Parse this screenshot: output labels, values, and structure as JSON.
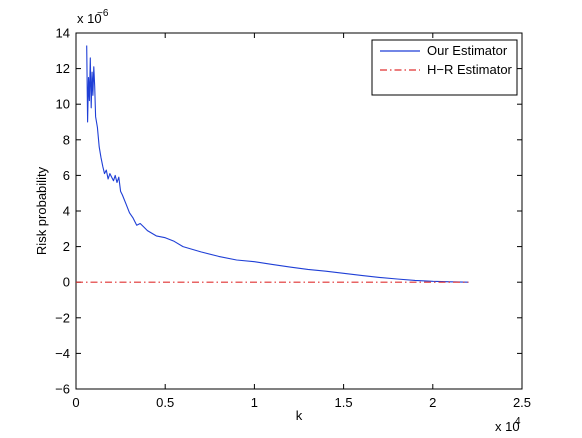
{
  "chart_data": {
    "type": "line",
    "xlabel": "k",
    "ylabel": "Risk probability",
    "xlim": [
      0,
      2.5
    ],
    "ylim": [
      -6,
      14
    ],
    "x_ticks": [
      0,
      0.5,
      1,
      1.5,
      2,
      2.5
    ],
    "y_ticks": [
      -6,
      -4,
      -2,
      0,
      2,
      4,
      6,
      8,
      10,
      12,
      14
    ],
    "x_tick_labels": [
      "0",
      "0.5",
      "1",
      "1.5",
      "2",
      "2.5"
    ],
    "y_tick_labels": [
      "−6",
      "−4",
      "−2",
      "0",
      "2",
      "4",
      "6",
      "8",
      "10",
      "12",
      "14"
    ],
    "x_exponent": "x 10",
    "x_exponent_power": "4",
    "y_exponent": "x 10",
    "y_exponent_power": "−6",
    "grid": false,
    "legend_position": "top-right",
    "series": [
      {
        "name": "Our Estimator",
        "color": "#1f3fd6",
        "style": "solid",
        "x": [
          0.06,
          0.065,
          0.07,
          0.075,
          0.08,
          0.085,
          0.09,
          0.095,
          0.1,
          0.105,
          0.11,
          0.12,
          0.13,
          0.14,
          0.15,
          0.16,
          0.17,
          0.18,
          0.19,
          0.2,
          0.21,
          0.22,
          0.23,
          0.24,
          0.25,
          0.26,
          0.28,
          0.3,
          0.32,
          0.34,
          0.36,
          0.38,
          0.4,
          0.45,
          0.5,
          0.55,
          0.6,
          0.7,
          0.8,
          0.9,
          1.0,
          1.1,
          1.2,
          1.3,
          1.4,
          1.5,
          1.6,
          1.7,
          1.8,
          1.9,
          2.0,
          2.1,
          2.2
        ],
        "y": [
          13.3,
          9.0,
          11.5,
          10.2,
          12.6,
          9.8,
          11.8,
          10.5,
          12.1,
          11.0,
          9.3,
          8.7,
          7.6,
          7.0,
          6.5,
          6.1,
          6.3,
          5.8,
          6.1,
          5.9,
          5.7,
          6.0,
          5.6,
          5.9,
          5.1,
          4.9,
          4.4,
          3.9,
          3.6,
          3.2,
          3.3,
          3.1,
          2.9,
          2.6,
          2.5,
          2.3,
          2.0,
          1.7,
          1.45,
          1.25,
          1.15,
          1.0,
          0.85,
          0.72,
          0.62,
          0.5,
          0.38,
          0.27,
          0.18,
          0.1,
          0.05,
          0.02,
          0.0
        ]
      },
      {
        "name": "H−R Estimator",
        "color": "#e03030",
        "style": "dash-dot",
        "x": [
          0,
          2.2
        ],
        "y": [
          0,
          0
        ]
      }
    ]
  }
}
